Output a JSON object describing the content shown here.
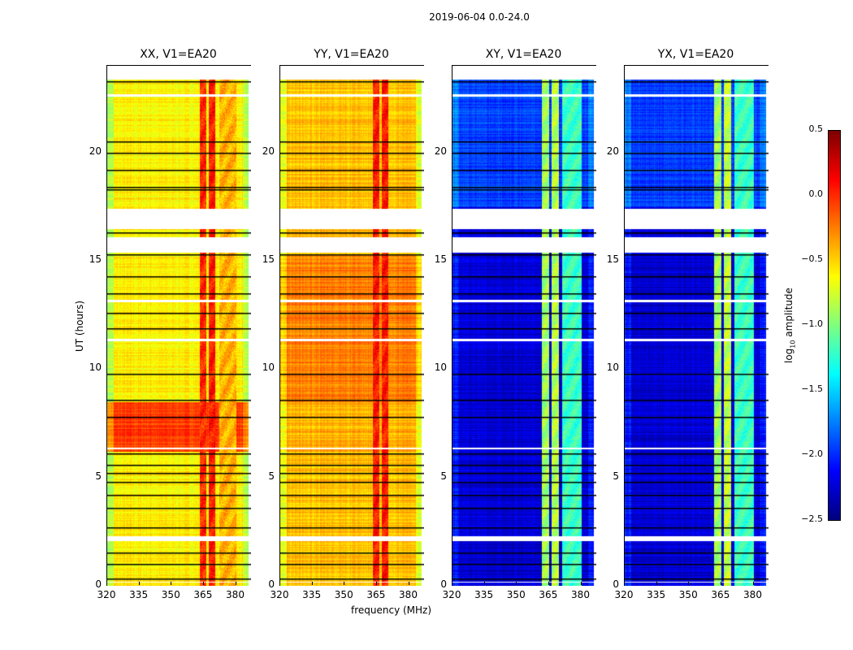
{
  "chart_data": {
    "type": "heatmap",
    "title": "2019-06-04 0.0-24.0",
    "xlabel": "frequency (MHz)",
    "ylabel": "UT (hours)",
    "xlim": [
      320,
      387
    ],
    "ylim": [
      0,
      24
    ],
    "data_time_range": [
      0,
      23.4
    ],
    "xticks": [
      320,
      335,
      350,
      365,
      380
    ],
    "yticks": [
      0,
      5,
      10,
      15,
      20
    ],
    "colorbar": {
      "label_main": "log",
      "label_sub": "10",
      "label_rest": " amplitude",
      "colormap": "jet",
      "range": [
        -2.5,
        0.5
      ],
      "ticks": [
        "0.5",
        "0.0",
        "−0.5",
        "−1.0",
        "−1.5",
        "−2.0",
        "−2.5"
      ]
    },
    "flagged_hours": [
      [
        15.4,
        16.1
      ],
      [
        16.5,
        17.4
      ],
      [
        2.1,
        2.3
      ],
      [
        11.3,
        11.4
      ],
      [
        13.1,
        13.2
      ],
      [
        22.6,
        22.7
      ],
      [
        6.3,
        6.4
      ],
      [
        0.15,
        0.2
      ]
    ],
    "boundary_hours": [
      0.35,
      1.0,
      1.55,
      2.7,
      3.6,
      4.2,
      4.8,
      5.2,
      5.6,
      6.1,
      7.8,
      8.6,
      9.8,
      11.9,
      12.6,
      13.5,
      14.3,
      15.3,
      16.3,
      18.3,
      18.4,
      19.2,
      20.0,
      20.5,
      23.3
    ],
    "panels": [
      {
        "title": "XX, V1=EA20",
        "base": -0.6,
        "segments": [
          {
            "hours": [
              6.2,
              8.5
            ],
            "value": -0.05
          }
        ],
        "rfi": [
          {
            "mhz": [
              363,
              366
            ],
            "value": 0.0
          },
          {
            "mhz": [
              367,
              370
            ],
            "value": 0.05
          },
          {
            "mhz": [
              372,
              380
            ],
            "value": -0.4
          }
        ]
      },
      {
        "title": "YY, V1=EA20",
        "base": -0.45,
        "segments": [
          {
            "hours": [
              8.5,
              15.3
            ],
            "value": -0.25
          },
          {
            "hours": [
              6.2,
              8.5
            ],
            "value": -0.4
          }
        ],
        "rfi": [
          {
            "mhz": [
              363,
              366
            ],
            "value": 0.05
          },
          {
            "mhz": [
              367,
              370
            ],
            "value": 0.05
          }
        ]
      },
      {
        "title": "XY, V1=EA20",
        "base": -2.25,
        "segments": [
          {
            "hours": [
              17.5,
              23.4
            ],
            "value": -1.95
          }
        ],
        "rfi": [
          {
            "mhz": [
              361.5,
              365
            ],
            "value": -0.9
          },
          {
            "mhz": [
              366,
              369.5
            ],
            "value": -0.85
          },
          {
            "mhz": [
              371,
              380
            ],
            "value": -1.2
          }
        ]
      },
      {
        "title": "YX, V1=EA20",
        "base": -2.25,
        "segments": [
          {
            "hours": [
              17.5,
              23.4
            ],
            "value": -1.95
          }
        ],
        "rfi": [
          {
            "mhz": [
              361.5,
              365
            ],
            "value": -0.9
          },
          {
            "mhz": [
              366,
              369.5
            ],
            "value": -0.8
          },
          {
            "mhz": [
              371,
              380
            ],
            "value": -1.2
          }
        ]
      }
    ]
  }
}
